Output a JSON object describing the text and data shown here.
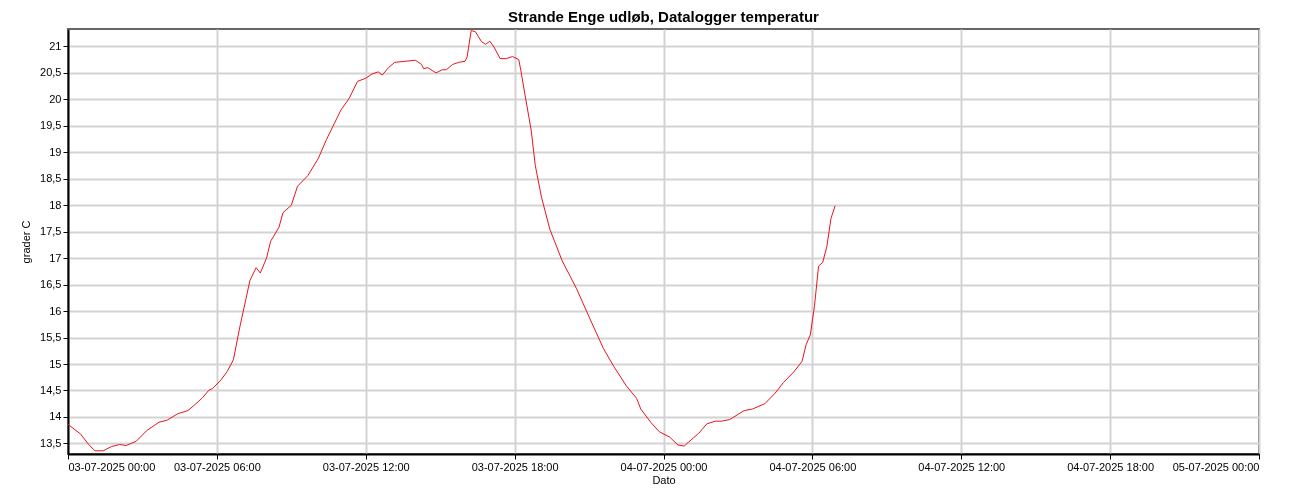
{
  "chart_data": {
    "type": "line",
    "title": "Strande Enge udløb, Datalogger temperatur",
    "xlabel": "Dato",
    "ylabel": "grader C",
    "x": [
      "2025-07-03T00:00",
      "2025-07-03T00:30",
      "2025-07-03T00:50",
      "2025-07-03T01:05",
      "2025-07-03T01:25",
      "2025-07-03T01:45",
      "2025-07-03T02:05",
      "2025-07-03T02:20",
      "2025-07-03T02:45",
      "2025-07-03T03:10",
      "2025-07-03T03:40",
      "2025-07-03T04:00",
      "2025-07-03T04:25",
      "2025-07-03T04:50",
      "2025-07-03T05:05",
      "2025-07-03T05:25",
      "2025-07-03T05:40",
      "2025-07-03T05:50",
      "2025-07-03T06:10",
      "2025-07-03T06:25",
      "2025-07-03T06:40",
      "2025-07-03T06:55",
      "2025-07-03T07:10",
      "2025-07-03T07:20",
      "2025-07-03T07:35",
      "2025-07-03T07:45",
      "2025-07-03T08:00",
      "2025-07-03T08:10",
      "2025-07-03T08:30",
      "2025-07-03T08:40",
      "2025-07-03T09:00",
      "2025-07-03T09:15",
      "2025-07-03T09:40",
      "2025-07-03T10:05",
      "2025-07-03T10:25",
      "2025-07-03T10:40",
      "2025-07-03T11:00",
      "2025-07-03T11:20",
      "2025-07-03T11:40",
      "2025-07-03T12:00",
      "2025-07-03T12:15",
      "2025-07-03T12:30",
      "2025-07-03T12:40",
      "2025-07-03T12:55",
      "2025-07-03T13:10",
      "2025-07-03T13:35",
      "2025-07-03T14:00",
      "2025-07-03T14:15",
      "2025-07-03T14:20",
      "2025-07-03T14:30",
      "2025-07-03T14:50",
      "2025-07-03T15:05",
      "2025-07-03T15:15",
      "2025-07-03T15:30",
      "2025-07-03T15:45",
      "2025-07-03T16:00",
      "2025-07-03T16:05",
      "2025-07-03T16:15",
      "2025-07-03T16:25",
      "2025-07-03T16:40",
      "2025-07-03T16:50",
      "2025-07-03T17:00",
      "2025-07-03T17:10",
      "2025-07-03T17:25",
      "2025-07-03T17:40",
      "2025-07-03T17:55",
      "2025-07-03T18:10",
      "2025-07-03T18:15",
      "2025-07-03T18:25",
      "2025-07-03T18:40",
      "2025-07-03T18:50",
      "2025-07-03T19:05",
      "2025-07-03T19:25",
      "2025-07-03T19:55",
      "2025-07-03T20:30",
      "2025-07-03T21:00",
      "2025-07-03T21:35",
      "2025-07-03T22:00",
      "2025-07-03T22:30",
      "2025-07-03T22:55",
      "2025-07-03T23:05",
      "2025-07-03T23:30",
      "2025-07-03T23:50",
      "2025-07-04T00:15",
      "2025-07-04T00:35",
      "2025-07-04T00:50",
      "2025-07-04T01:00",
      "2025-07-04T01:25",
      "2025-07-04T01:45",
      "2025-07-04T02:05",
      "2025-07-04T02:20",
      "2025-07-04T02:40",
      "2025-07-04T03:15",
      "2025-07-04T03:35",
      "2025-07-04T04:05",
      "2025-07-04T04:30",
      "2025-07-04T04:50",
      "2025-07-04T05:15",
      "2025-07-04T05:35",
      "2025-07-04T05:45",
      "2025-07-04T05:55",
      "2025-07-04T06:05",
      "2025-07-04T06:15",
      "2025-07-04T06:25",
      "2025-07-04T06:35",
      "2025-07-04T06:45",
      "2025-07-04T06:55"
    ],
    "series": [
      {
        "color": "#e8141e",
        "values": [
          13.86,
          13.68,
          13.48,
          13.36,
          13.36,
          13.44,
          13.48,
          13.46,
          13.54,
          13.74,
          13.9,
          13.94,
          14.06,
          14.12,
          14.22,
          14.36,
          14.5,
          14.54,
          14.7,
          14.86,
          15.08,
          15.68,
          16.22,
          16.58,
          16.82,
          16.72,
          17.0,
          17.32,
          17.58,
          17.86,
          18.0,
          18.36,
          18.56,
          18.88,
          19.24,
          19.48,
          19.8,
          20.02,
          20.34,
          20.4,
          20.48,
          20.52,
          20.46,
          20.6,
          20.7,
          20.72,
          20.74,
          20.66,
          20.58,
          20.6,
          20.5,
          20.56,
          20.56,
          20.66,
          20.7,
          20.72,
          20.8,
          21.3,
          21.28,
          21.09,
          21.04,
          21.1,
          20.99,
          20.77,
          20.77,
          20.81,
          20.75,
          20.55,
          20.09,
          19.42,
          18.75,
          18.15,
          17.55,
          16.95,
          16.42,
          15.89,
          15.29,
          14.95,
          14.59,
          14.35,
          14.15,
          13.89,
          13.72,
          13.62,
          13.47,
          13.45,
          13.52,
          13.69,
          13.87,
          13.92,
          13.92,
          13.95,
          14.12,
          14.15,
          14.25,
          14.45,
          14.65,
          14.85,
          15.05,
          15.37,
          15.55,
          16.09,
          16.85,
          16.92,
          17.22,
          17.75,
          17.99
        ]
      }
    ],
    "xlim": [
      "2025-07-03T00:00",
      "2025-07-05T00:00"
    ],
    "xticks": [
      {
        "value": "2025-07-03T00:00",
        "label": "03-07-2025 00:00"
      },
      {
        "value": "2025-07-03T06:00",
        "label": "03-07-2025 06:00"
      },
      {
        "value": "2025-07-03T12:00",
        "label": "03-07-2025 12:00"
      },
      {
        "value": "2025-07-03T18:00",
        "label": "03-07-2025 18:00"
      },
      {
        "value": "2025-07-04T00:00",
        "label": "04-07-2025 00:00"
      },
      {
        "value": "2025-07-04T06:00",
        "label": "04-07-2025 06:00"
      },
      {
        "value": "2025-07-04T12:00",
        "label": "04-07-2025 12:00"
      },
      {
        "value": "2025-07-04T18:00",
        "label": "04-07-2025 18:00"
      },
      {
        "value": "2025-07-05T00:00",
        "label": "05-07-2025 00:00"
      }
    ],
    "ylim": [
      13.3,
      21.33
    ],
    "yticks": [
      {
        "value": 13.5,
        "label": "13,5"
      },
      14,
      {
        "value": 14.5,
        "label": "14,5"
      },
      15,
      {
        "value": 15.5,
        "label": "15,5"
      },
      16,
      {
        "value": 16.5,
        "label": "16,5"
      },
      17,
      {
        "value": 17.5,
        "label": "17,5"
      },
      18,
      {
        "value": 18.5,
        "label": "18,5"
      },
      19,
      {
        "value": 19.5,
        "label": "19,5"
      },
      20,
      {
        "value": 20.5,
        "label": "20,5"
      },
      21
    ],
    "grid": true,
    "marker": "none",
    "line_style": "solid"
  }
}
